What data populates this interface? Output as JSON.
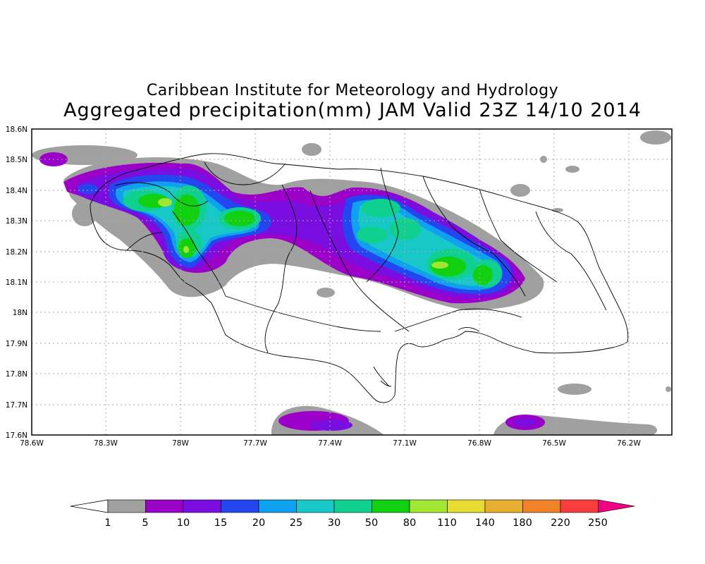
{
  "title": "Caribbean Institute for Meteorology and Hydrology",
  "subtitle": "Aggregated precipitation(mm) JAM Valid 23Z 14/10 2014",
  "map": {
    "lon_ticks": [
      "78.6W",
      "78.3W",
      "78W",
      "77.7W",
      "77.4W",
      "77.1W",
      "76.8W",
      "76.5W",
      "76.2W"
    ],
    "lat_ticks": [
      "18.6N",
      "18.5N",
      "18.4N",
      "18.3N",
      "18.2N",
      "18.1N",
      "18N",
      "17.9N",
      "17.8N",
      "17.7N",
      "17.6N"
    ],
    "lon_range": [
      -78.6,
      -76.1
    ],
    "lat_range": [
      17.6,
      18.6
    ],
    "grid": "dotted"
  },
  "colorbar": {
    "labels": [
      "1",
      "5",
      "10",
      "15",
      "20",
      "25",
      "30",
      "50",
      "80",
      "110",
      "140",
      "180",
      "220",
      "250"
    ],
    "colors": [
      "#a0a0a0",
      "#9a00c8",
      "#7a0ee0",
      "#2446f0",
      "#10a0f0",
      "#18c8c8",
      "#10d090",
      "#10d010",
      "#a0e632",
      "#e6dc32",
      "#e6af2d",
      "#f08228",
      "#fa3c3c",
      "#f00082"
    ],
    "under_color": "#ffffff"
  }
}
